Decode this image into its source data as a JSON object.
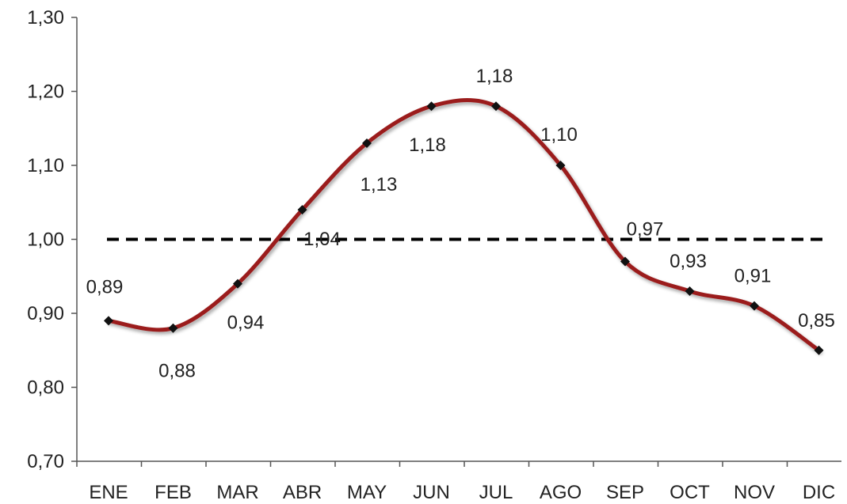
{
  "chart_data": {
    "type": "line",
    "categories": [
      "ENE",
      "FEB",
      "MAR",
      "ABR",
      "MAY",
      "JUN",
      "JUL",
      "AGO",
      "SEP",
      "OCT",
      "NOV",
      "DIC"
    ],
    "series": [
      {
        "values": [
          0.89,
          0.88,
          0.94,
          1.04,
          1.13,
          1.18,
          1.18,
          1.1,
          0.97,
          0.93,
          0.91,
          0.85
        ],
        "labels": [
          "0,89",
          "0,88",
          "0,94",
          "1,04",
          "1,13",
          "1,18",
          "1,18",
          "1,10",
          "0,97",
          "0,93",
          "0,91",
          "0,85"
        ],
        "color": "#9b1c1c",
        "smooth": true,
        "marker": "diamond"
      }
    ],
    "reference_line": {
      "value": 1.0,
      "style": "dashed",
      "color": "#000000"
    },
    "ylim": [
      0.7,
      1.3
    ],
    "yticks": [
      0.7,
      0.8,
      0.9,
      1.0,
      1.1,
      1.2,
      1.3
    ],
    "ytick_labels": [
      "0,70",
      "0,80",
      "0,90",
      "1,00",
      "1,10",
      "1,20",
      "1,30"
    ],
    "title": "",
    "xlabel": "",
    "ylabel": "",
    "grid": false,
    "legend": "none"
  }
}
